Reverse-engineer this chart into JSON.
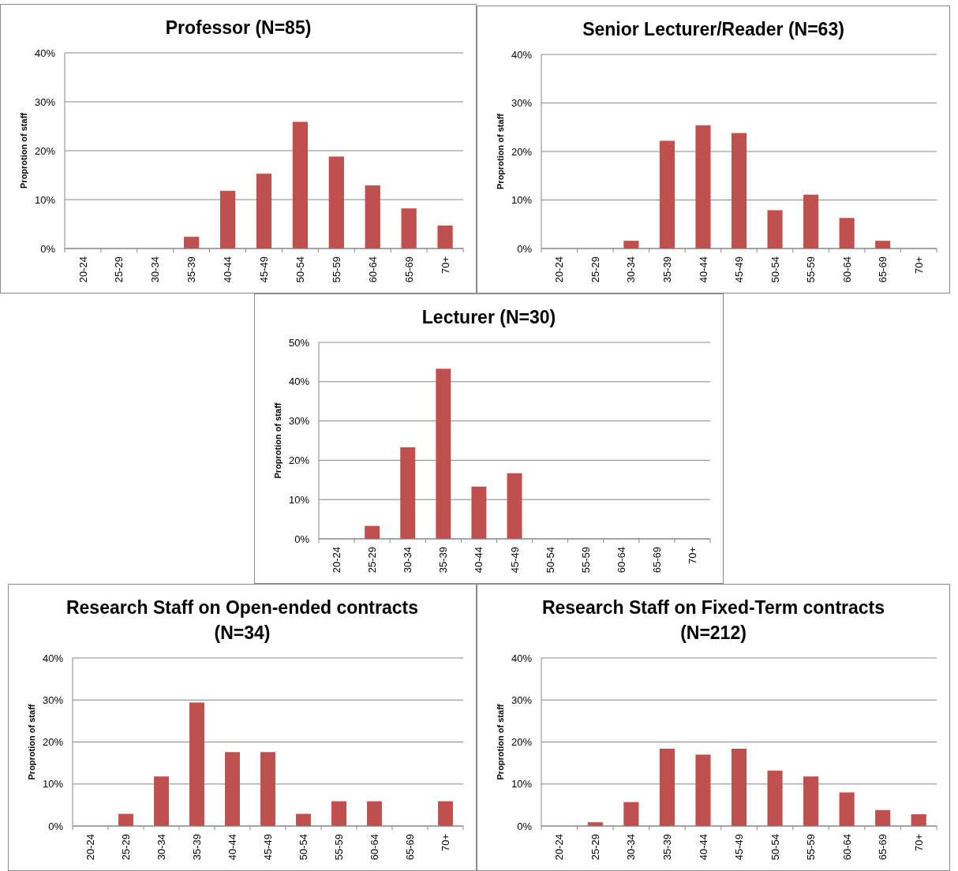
{
  "chart_data": [
    {
      "type": "bar",
      "title": "Professor (N=85)",
      "ylabel": "Proprotion of staff",
      "categories": [
        "20-24",
        "25-29",
        "30-34",
        "35-39",
        "40-44",
        "45-49",
        "50-54",
        "55-59",
        "60-64",
        "65-69",
        "70+"
      ],
      "values": [
        0,
        0,
        0,
        2.4,
        11.8,
        15.3,
        25.9,
        18.8,
        12.9,
        8.2,
        4.7
      ],
      "color": "#c0504d",
      "ylim": [
        0,
        40
      ],
      "yticks": [
        {
          "value": 0,
          "label": "0%"
        },
        {
          "value": 10,
          "label": "10%"
        },
        {
          "value": 20,
          "label": "20%"
        },
        {
          "value": 30,
          "label": "30%"
        },
        {
          "value": 40,
          "label": "40%"
        }
      ],
      "grid": "y"
    },
    {
      "type": "bar",
      "title": "Senior Lecturer/Reader (N=63)",
      "ylabel": "Proprotion of staff",
      "categories": [
        "20-24",
        "25-29",
        "30-34",
        "35-39",
        "40-44",
        "45-49",
        "50-54",
        "55-59",
        "60-64",
        "65-69",
        "70+"
      ],
      "values": [
        0,
        0,
        1.6,
        22.2,
        25.4,
        23.8,
        7.9,
        11.1,
        6.3,
        1.6,
        0
      ],
      "color": "#c0504d",
      "ylim": [
        0,
        40
      ],
      "yticks": [
        {
          "value": 0,
          "label": "0%"
        },
        {
          "value": 10,
          "label": "10%"
        },
        {
          "value": 20,
          "label": "20%"
        },
        {
          "value": 30,
          "label": "30%"
        },
        {
          "value": 40,
          "label": "40%"
        }
      ],
      "grid": "y"
    },
    {
      "type": "bar",
      "title": "Lecturer (N=30)",
      "ylabel": "Proprotion of staff",
      "categories": [
        "20-24",
        "25-29",
        "30-34",
        "35-39",
        "40-44",
        "45-49",
        "50-54",
        "55-59",
        "60-64",
        "65-69",
        "70+"
      ],
      "values": [
        0,
        3.3,
        23.3,
        43.3,
        13.3,
        16.7,
        0,
        0,
        0,
        0,
        0
      ],
      "color": "#c0504d",
      "ylim": [
        0,
        50
      ],
      "yticks": [
        {
          "value": 0,
          "label": "0%"
        },
        {
          "value": 10,
          "label": "10%"
        },
        {
          "value": 20,
          "label": "20%"
        },
        {
          "value": 30,
          "label": "30%"
        },
        {
          "value": 40,
          "label": "40%"
        },
        {
          "value": 50,
          "label": "50%"
        }
      ],
      "grid": "y"
    },
    {
      "type": "bar",
      "title": "Research Staff on Open-ended contracts (N=34)",
      "ylabel": "Proprotion of staff",
      "categories": [
        "20-24",
        "25-29",
        "30-34",
        "35-39",
        "40-44",
        "45-49",
        "50-54",
        "55-59",
        "60-64",
        "65-69",
        "70+"
      ],
      "values": [
        0,
        2.9,
        11.8,
        29.4,
        17.6,
        17.6,
        2.9,
        5.9,
        5.9,
        0,
        5.9
      ],
      "color": "#c0504d",
      "ylim": [
        0,
        40
      ],
      "yticks": [
        {
          "value": 0,
          "label": "0%"
        },
        {
          "value": 10,
          "label": "10%"
        },
        {
          "value": 20,
          "label": "20%"
        },
        {
          "value": 30,
          "label": "30%"
        },
        {
          "value": 40,
          "label": "40%"
        }
      ],
      "grid": "y"
    },
    {
      "type": "bar",
      "title": "Research Staff on Fixed-Term contracts (N=212)",
      "ylabel": "Proprotion of staff",
      "categories": [
        "20-24",
        "25-29",
        "30-34",
        "35-39",
        "40-44",
        "45-49",
        "50-54",
        "55-59",
        "60-64",
        "65-69",
        "70+"
      ],
      "values": [
        0,
        0.9,
        5.7,
        18.4,
        17.0,
        18.4,
        13.2,
        11.8,
        8.0,
        3.8,
        2.8
      ],
      "color": "#c0504d",
      "ylim": [
        0,
        40
      ],
      "yticks": [
        {
          "value": 0,
          "label": "0%"
        },
        {
          "value": 10,
          "label": "10%"
        },
        {
          "value": 20,
          "label": "20%"
        },
        {
          "value": 30,
          "label": "30%"
        },
        {
          "value": 40,
          "label": "40%"
        }
      ],
      "grid": "y"
    }
  ]
}
